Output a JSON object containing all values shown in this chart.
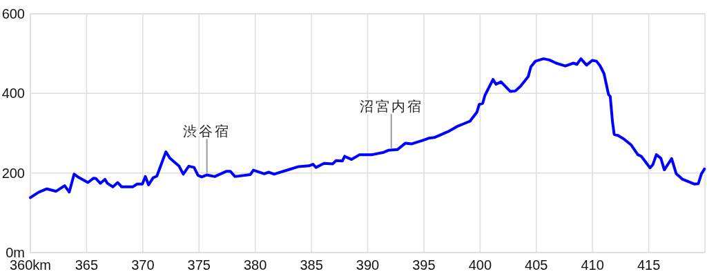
{
  "chart_data": {
    "type": "line",
    "color": "#0000ff",
    "marker": "none",
    "line_style": "solid",
    "grid": true,
    "xlim": [
      360,
      420
    ],
    "ylim": [
      0,
      600
    ],
    "xticks": [
      {
        "value": 360,
        "label": "360km"
      },
      365,
      370,
      375,
      380,
      385,
      390,
      395,
      400,
      405,
      410,
      415
    ],
    "yticks": [
      {
        "value": 0,
        "label": "0m"
      },
      200,
      400,
      600
    ],
    "x": [
      360.0,
      360.76,
      361.47,
      362.29,
      363.05,
      363.46,
      363.89,
      364.23,
      365.12,
      365.63,
      365.83,
      366.22,
      366.63,
      366.85,
      367.34,
      367.77,
      368.12,
      369.1,
      369.49,
      369.96,
      370.23,
      370.51,
      370.92,
      371.25,
      372.05,
      372.42,
      373.23,
      373.6,
      374.09,
      374.56,
      374.91,
      375.24,
      375.69,
      376.4,
      377.42,
      377.79,
      378.2,
      379.57,
      379.84,
      380.8,
      381.21,
      381.68,
      383.05,
      383.87,
      384.79,
      385.14,
      385.4,
      386.12,
      386.9,
      387.18,
      387.75,
      387.96,
      388.16,
      388.57,
      389.29,
      390.41,
      391.44,
      391.84,
      392.66,
      393.37,
      393.89,
      394.91,
      395.52,
      395.93,
      397.16,
      397.97,
      398.49,
      399.1,
      399.72,
      399.92,
      400.23,
      400.43,
      401.15,
      401.41,
      401.86,
      402.68,
      403.13,
      403.6,
      404.28,
      404.52,
      404.93,
      405.64,
      406.16,
      406.77,
      407.59,
      408.3,
      408.61,
      408.97,
      409.47,
      409.98,
      410.35,
      410.66,
      411.02,
      411.43,
      411.58,
      411.78,
      411.93,
      412.29,
      412.8,
      413.42,
      414.03,
      414.34,
      415.12,
      415.37,
      415.68,
      416.08,
      416.39,
      417.04,
      417.45,
      418.02,
      418.63,
      419.08,
      419.41,
      419.69,
      419.96
    ],
    "values": [
      138,
      152,
      160,
      154,
      168,
      152,
      197,
      190,
      176,
      187,
      186,
      174,
      184,
      174,
      165,
      176,
      165,
      165,
      172,
      172,
      191,
      170,
      188,
      192,
      253,
      237,
      217,
      197,
      217,
      214,
      194,
      190,
      195,
      191,
      204,
      204,
      191,
      196,
      207,
      198,
      202,
      197,
      209,
      216,
      218,
      222,
      214,
      224,
      223,
      231,
      230,
      242,
      239,
      234,
      246,
      246,
      252,
      257,
      259,
      275,
      273,
      282,
      288,
      289,
      304,
      317,
      323,
      330,
      353,
      372,
      375,
      395,
      435,
      423,
      429,
      405,
      406,
      418,
      442,
      467,
      481,
      487,
      484,
      476,
      469,
      476,
      473,
      487,
      471,
      483,
      481,
      470,
      450,
      397,
      392,
      328,
      297,
      294,
      285,
      271,
      246,
      242,
      213,
      221,
      246,
      237,
      208,
      236,
      198,
      184,
      177,
      172,
      173,
      198,
      210
    ],
    "annotations": [
      {
        "text": "渋谷宿",
        "x": 375.7,
        "y": 195
      },
      {
        "text": "沼宮内宿",
        "x": 392.1,
        "y": 257
      }
    ]
  }
}
